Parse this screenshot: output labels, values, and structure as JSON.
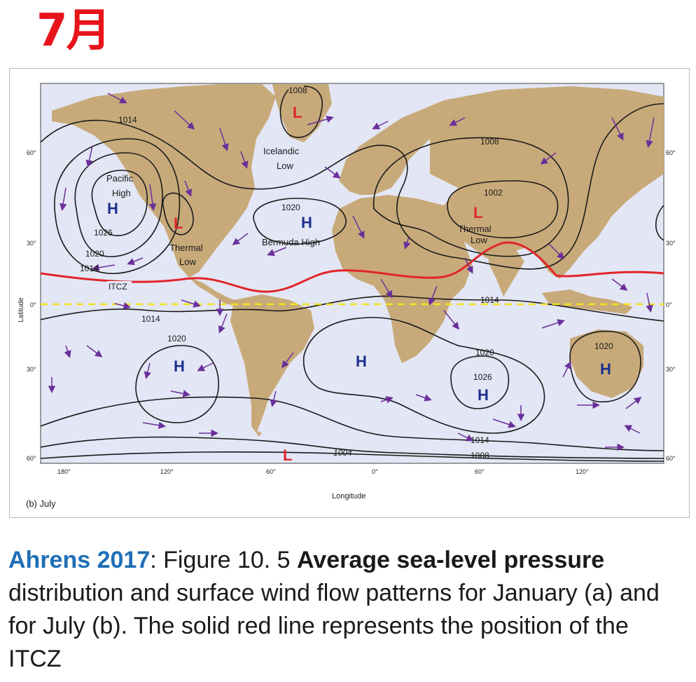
{
  "title": "7月",
  "figure": {
    "panel_label": "(b) July",
    "axis_x_label": "Longitude",
    "axis_y_label": "Latitude",
    "lon_ticks": [
      "180°",
      "120°",
      "60°",
      "0°",
      "60°",
      "120°"
    ],
    "lat_ticks_left": [
      "60°",
      "30°",
      "0°",
      "30°",
      "60°"
    ],
    "lat_ticks_right": [
      "60°",
      "30°",
      "0°",
      "30°",
      "60°"
    ],
    "isobar_labels": {
      "l1014_north": "1014",
      "l1008_iceland": "1008",
      "l1008_asia": "1008",
      "l1002": "1002",
      "l1020_atl": "1020",
      "l1026_pac": "1026",
      "l1020_pac": "1020",
      "l1014_pac": "1014",
      "l1014_eq_w": "1014",
      "l1014_eq_e": "1014",
      "l1020_spac": "1020",
      "l1020_sind": "1020",
      "l1026_sind": "1026",
      "l1020_aus": "1020",
      "l1014_south": "1014",
      "l1004": "1004",
      "l1008_south": "1008"
    },
    "pressure_centers": {
      "iceland_L": "L",
      "iceland_name_1": "Icelandic",
      "iceland_name_2": "Low",
      "pacific_H": "H",
      "pacific_name_1": "Pacific",
      "pacific_name_2": "High",
      "na_thermal_L": "L",
      "na_thermal_1": "Thermal",
      "na_thermal_2": "Low",
      "bermuda_H": "H",
      "bermuda_name": "Bermuda High",
      "asia_thermal_L": "L",
      "asia_thermal_1": "Thermal",
      "asia_thermal_2": "Low",
      "spac_H": "H",
      "satl_H": "H",
      "sind_H": "H",
      "aus_H": "H",
      "south_L": "L"
    },
    "itcz_label": "ITCZ",
    "colors": {
      "ocean": "#e3e6f4",
      "land": "#c8aa7a",
      "isobar": "#1a1a1a",
      "itcz": "#e0252a",
      "equator": "#f4e41b",
      "wind_arrow": "#6a2f9a",
      "high": "#1e2f8f",
      "low": "#e0252a"
    }
  },
  "caption": {
    "source": "Ahrens 2017",
    "sep": ": Figure 10. 5 ",
    "bold_part": "Average sea-level pressure",
    "rest": " distribution and surface wind flow patterns for January (a) and for July (b). The solid red line represents the position of the ITCZ"
  }
}
